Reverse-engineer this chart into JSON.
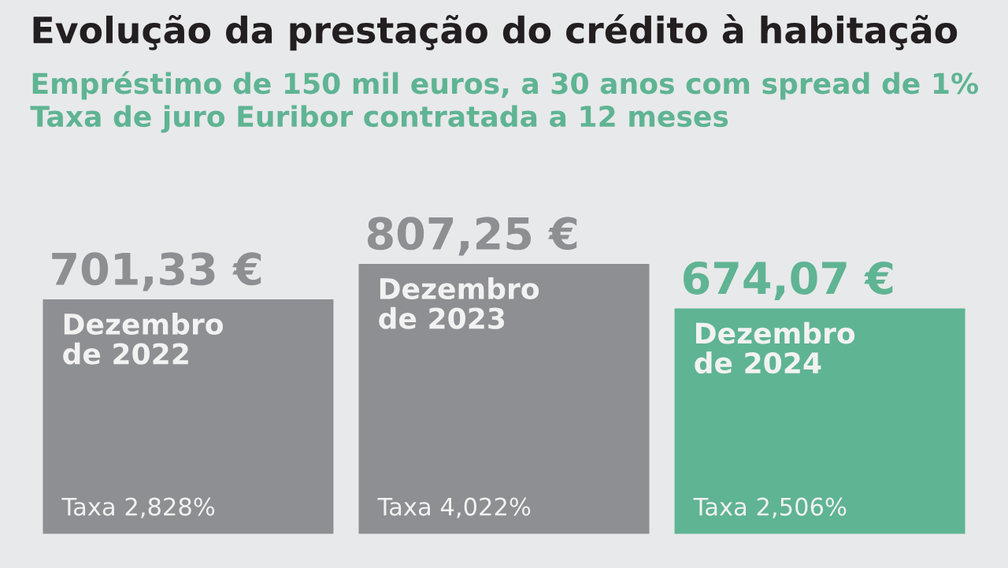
{
  "chart_data": {
    "type": "bar",
    "title": "Evolução da prestação do crédito à habitação",
    "subtitle": "Empréstimo de 150 mil euros, a 30 anos com spread de 1%\nTaxa de juro Euribor contratada a 12 meses",
    "categories": [
      "Dezembro de 2022",
      "Dezembro de 2023",
      "Dezembro de 2024"
    ],
    "values": [
      701.33,
      807.25,
      674.07
    ],
    "value_labels": [
      "701,33 €",
      "807,25 €",
      "674,07 €"
    ],
    "colors": [
      "#8e8f93",
      "#8e8f93",
      "#5fb493"
    ],
    "annotations": [
      "Taxa 2,828%",
      "Taxa 4,022%",
      "Taxa 2,506%"
    ],
    "legend": false
  }
}
